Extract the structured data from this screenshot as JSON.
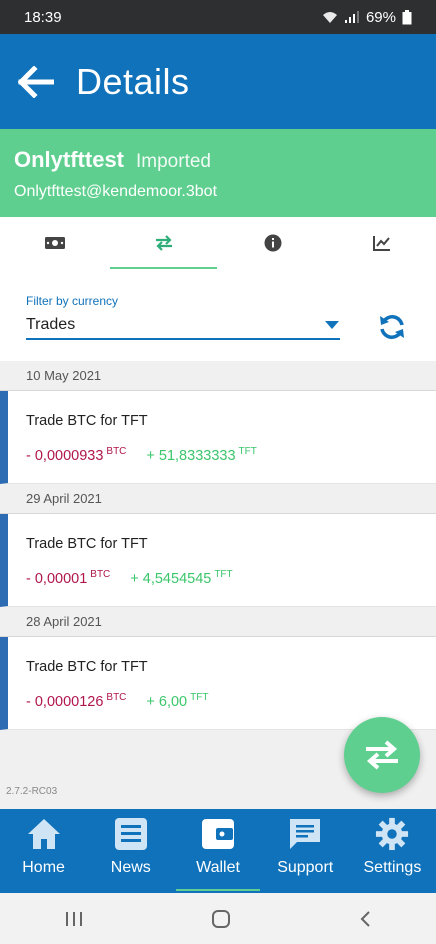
{
  "status_bar": {
    "time": "18:39",
    "battery": "69%"
  },
  "header": {
    "title": "Details"
  },
  "profile": {
    "name": "Onlytfttest",
    "status": "Imported",
    "email": "Onlytfttest@kendemoor.3bot"
  },
  "tabs": [
    {
      "icon": "money-icon"
    },
    {
      "icon": "transfer-icon",
      "active": true
    },
    {
      "icon": "info-icon"
    },
    {
      "icon": "chart-icon"
    }
  ],
  "filter": {
    "label": "Filter by currency",
    "value": "Trades"
  },
  "transactions": [
    {
      "date": "10 May 2021",
      "title": "Trade BTC for TFT",
      "sent": "- 0,0000933",
      "sent_currency": "BTC",
      "received": "+ 51,8333333",
      "received_currency": "TFT"
    },
    {
      "date": "29 April 2021",
      "title": "Trade BTC for TFT",
      "sent": "- 0,00001",
      "sent_currency": "BTC",
      "received": "+ 4,5454545",
      "received_currency": "TFT"
    },
    {
      "date": "28 April 2021",
      "title": "Trade BTC for TFT",
      "sent": "- 0,0000126",
      "sent_currency": "BTC",
      "received": "+ 6,00",
      "received_currency": "TFT"
    }
  ],
  "version": "2.7.2-RC03",
  "bottom_nav": [
    {
      "label": "Home",
      "icon": "home-icon"
    },
    {
      "label": "News",
      "icon": "news-icon"
    },
    {
      "label": "Wallet",
      "icon": "wallet-icon",
      "active": true
    },
    {
      "label": "Support",
      "icon": "chat-icon"
    },
    {
      "label": "Settings",
      "icon": "gear-icon"
    }
  ],
  "colors": {
    "primary": "#1072ba",
    "accent": "#5fcf8f",
    "negative": "#b0164c",
    "positive": "#3bc66b"
  }
}
